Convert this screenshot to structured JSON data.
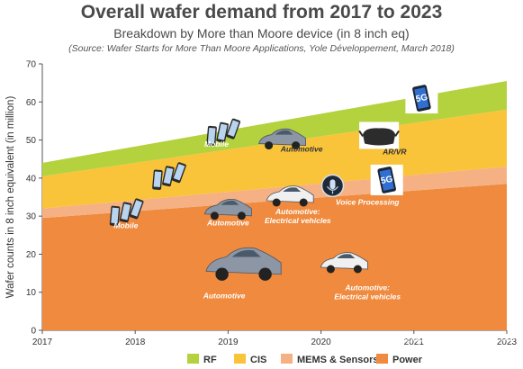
{
  "chart_data": {
    "type": "area",
    "stacked": true,
    "title": "Overall wafer demand from 2017 to 2023",
    "subtitle": "Breakdown by More than Moore device (in 8 inch eq)",
    "source": "(Source: Wafer Starts for More Than Moore Applications, Yole Développement, March 2018)",
    "ylabel": "Wafer counts in 8 inch equivalent (in million)",
    "x": [
      2017,
      2023
    ],
    "x_ticks": [
      "2017",
      "2018",
      "2019",
      "2020",
      "2021",
      "2023"
    ],
    "ylim": [
      0,
      70
    ],
    "y_ticks": [
      "0",
      "10",
      "20",
      "30",
      "40",
      "50",
      "60",
      "70"
    ],
    "series": [
      {
        "name": "Power",
        "color": "#ef8a3e",
        "values": [
          29.5,
          38.5
        ]
      },
      {
        "name": "MEMS & Sensors",
        "color": "#f5b183",
        "values": [
          2.5,
          4.5
        ]
      },
      {
        "name": "CIS",
        "color": "#f9c43a",
        "values": [
          8.5,
          15
        ]
      },
      {
        "name": "RF",
        "color": "#b4d13e",
        "values": [
          3.5,
          7.5
        ]
      }
    ],
    "legend": [
      "RF",
      "CIS",
      "MEMS & Sensors",
      "Power"
    ],
    "legend_position": "bottom",
    "annotations": [
      {
        "text": "Mobile",
        "x": 2018.18,
        "y": 54.3,
        "color": "#ffffff"
      },
      {
        "text": "Mobile",
        "x": 2019.25,
        "y": 48.2,
        "color": "#ffffff"
      },
      {
        "text": "Mobile",
        "x": 2018.08,
        "y": 26.8,
        "color": "#ffffff"
      },
      {
        "text": "Automotive",
        "x": 2020.35,
        "y": 47.0,
        "color": "#333333"
      },
      {
        "text": "Automotive",
        "x": 2019.4,
        "y": 27.6,
        "color": "#ffffff"
      },
      {
        "text": "Automotive: Electrical vehicles",
        "x": 2020.3,
        "y": 30.5,
        "color": "#ffffff"
      },
      {
        "text": "Voice Processing",
        "x": 2021.2,
        "y": 33.0,
        "color": "#ffffff"
      },
      {
        "text": "AR/VR",
        "x": 2021.55,
        "y": 46.2,
        "color": "#333333"
      },
      {
        "text": "Automotive",
        "x": 2019.35,
        "y": 8.4,
        "color": "#ffffff"
      },
      {
        "text": "Automotive: Electrical vehicles",
        "x": 2021.2,
        "y": 10.5,
        "color": "#ffffff"
      }
    ],
    "icons": [
      {
        "name": "smartphone-icon",
        "x": 2018.1,
        "y": 31
      },
      {
        "name": "smartphone-icon",
        "x": 2018.65,
        "y": 40.5
      },
      {
        "name": "smartphone-icon",
        "x": 2019.35,
        "y": 52
      },
      {
        "name": "car-icon",
        "x": 2019.4,
        "y": 31.5
      },
      {
        "name": "car-icon",
        "x": 2020.1,
        "y": 50
      },
      {
        "name": "car-icon",
        "x": 2019.6,
        "y": 17
      },
      {
        "name": "electric-car-icon",
        "x": 2020.2,
        "y": 35
      },
      {
        "name": "electric-car-icon",
        "x": 2020.9,
        "y": 17.5
      },
      {
        "name": "microphone-icon",
        "x": 2020.75,
        "y": 38
      },
      {
        "name": "vr-headset-icon",
        "x": 2021.35,
        "y": 50.5
      },
      {
        "name": "5g-phone-icon",
        "x": 2021.45,
        "y": 39.5
      },
      {
        "name": "5g-phone-icon",
        "x": 2021.9,
        "y": 61
      }
    ]
  },
  "watermark": "电子发烧友 www.elecfans.com"
}
